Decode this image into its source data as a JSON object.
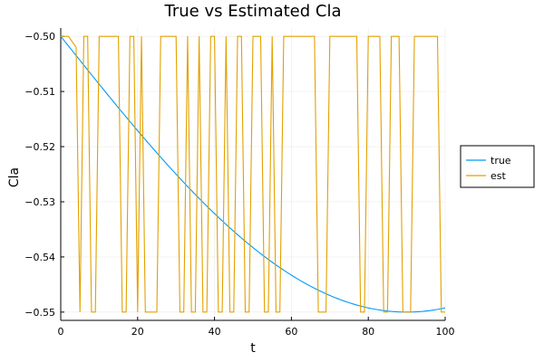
{
  "chart_data": {
    "type": "line",
    "title": "True vs Estimated Cla",
    "xlabel": "t",
    "ylabel": "Cla",
    "xlim": [
      0,
      100
    ],
    "ylim": [
      -0.5515,
      -0.4985
    ],
    "xticks": [
      0,
      20,
      40,
      60,
      80,
      100
    ],
    "xtick_labels": [
      "0",
      "20",
      "40",
      "60",
      "80",
      "100"
    ],
    "yticks": [
      -0.5,
      -0.51,
      -0.52,
      -0.53,
      -0.54,
      -0.55
    ],
    "ytick_labels": [
      "−0.50",
      "−0.51",
      "−0.52",
      "−0.53",
      "−0.54",
      "−0.55"
    ],
    "grid": true,
    "legend_position": "outer-right",
    "series": [
      {
        "name": "true",
        "color": "#009AFA",
        "function": "-0.5 - 0.05*sin(pi*t/180)",
        "x": [
          0,
          10,
          20,
          30,
          40,
          50,
          60,
          70,
          80,
          90,
          100
        ],
        "y": [
          -0.5,
          -0.5087,
          -0.5171,
          -0.525,
          -0.5321,
          -0.5383,
          -0.5433,
          -0.547,
          -0.5492,
          -0.55,
          -0.5492
        ]
      },
      {
        "name": "est",
        "color": "#E3A000",
        "x": [
          0,
          1,
          2,
          3,
          4,
          5,
          6,
          7,
          8,
          9,
          10,
          11,
          12,
          13,
          14,
          15,
          16,
          17,
          18,
          19,
          20,
          21,
          22,
          23,
          24,
          25,
          26,
          27,
          28,
          29,
          30,
          31,
          32,
          33,
          34,
          35,
          36,
          37,
          38,
          39,
          40,
          41,
          42,
          43,
          44,
          45,
          46,
          47,
          48,
          49,
          50,
          51,
          52,
          53,
          54,
          55,
          56,
          57,
          58,
          59,
          60,
          61,
          62,
          63,
          64,
          65,
          66,
          67,
          68,
          69,
          70,
          71,
          72,
          73,
          74,
          75,
          76,
          77,
          78,
          79,
          80,
          81,
          82,
          83,
          84,
          85,
          86,
          87,
          88,
          89,
          90,
          91,
          92,
          93,
          94,
          95,
          96,
          97,
          98,
          99,
          100
        ],
        "y": [
          -0.5,
          -0.5,
          -0.5,
          -0.501,
          -0.502,
          -0.55,
          -0.5,
          -0.5,
          -0.55,
          -0.55,
          -0.5,
          -0.5,
          -0.5,
          -0.5,
          -0.5,
          -0.5,
          -0.55,
          -0.55,
          -0.5,
          -0.5,
          -0.55,
          -0.5,
          -0.55,
          -0.55,
          -0.55,
          -0.55,
          -0.5,
          -0.5,
          -0.5,
          -0.5,
          -0.5,
          -0.55,
          -0.55,
          -0.5,
          -0.55,
          -0.55,
          -0.5,
          -0.55,
          -0.55,
          -0.5,
          -0.5,
          -0.55,
          -0.55,
          -0.5,
          -0.55,
          -0.55,
          -0.5,
          -0.5,
          -0.55,
          -0.55,
          -0.5,
          -0.5,
          -0.5,
          -0.55,
          -0.55,
          -0.5,
          -0.55,
          -0.55,
          -0.5,
          -0.5,
          -0.5,
          -0.5,
          -0.5,
          -0.5,
          -0.5,
          -0.5,
          -0.5,
          -0.55,
          -0.55,
          -0.55,
          -0.5,
          -0.5,
          -0.5,
          -0.5,
          -0.5,
          -0.5,
          -0.5,
          -0.5,
          -0.55,
          -0.55,
          -0.5,
          -0.5,
          -0.5,
          -0.5,
          -0.55,
          -0.55,
          -0.5,
          -0.5,
          -0.5,
          -0.55,
          -0.55,
          -0.55,
          -0.5,
          -0.5,
          -0.5,
          -0.5,
          -0.5,
          -0.5,
          -0.5,
          -0.55,
          -0.55
        ]
      }
    ]
  }
}
